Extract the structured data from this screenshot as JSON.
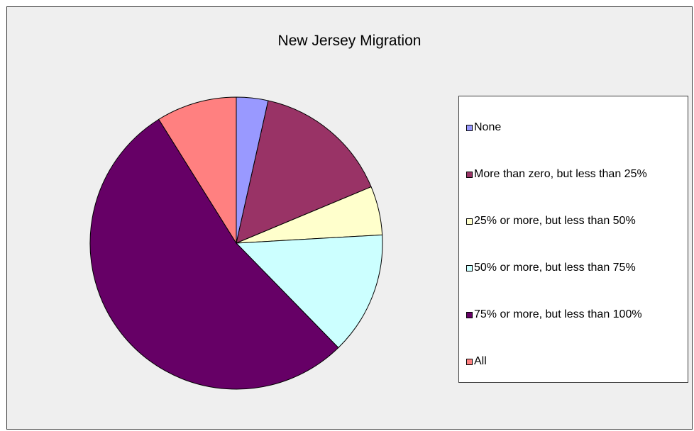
{
  "chart_data": {
    "type": "pie",
    "title": "New Jersey Migration",
    "categories": [
      "None",
      "More than zero, but less than 25%",
      "25% or more, but less than 50%",
      "50% or more, but less than 75%",
      "75% or more, but less than 100%",
      "All"
    ],
    "values": [
      3.5,
      15.2,
      5.4,
      13.6,
      53.4,
      8.9
    ],
    "colors": [
      "#9999ff",
      "#993366",
      "#ffffcc",
      "#ccffff",
      "#660066",
      "#ff8080"
    ],
    "legend": "right"
  }
}
